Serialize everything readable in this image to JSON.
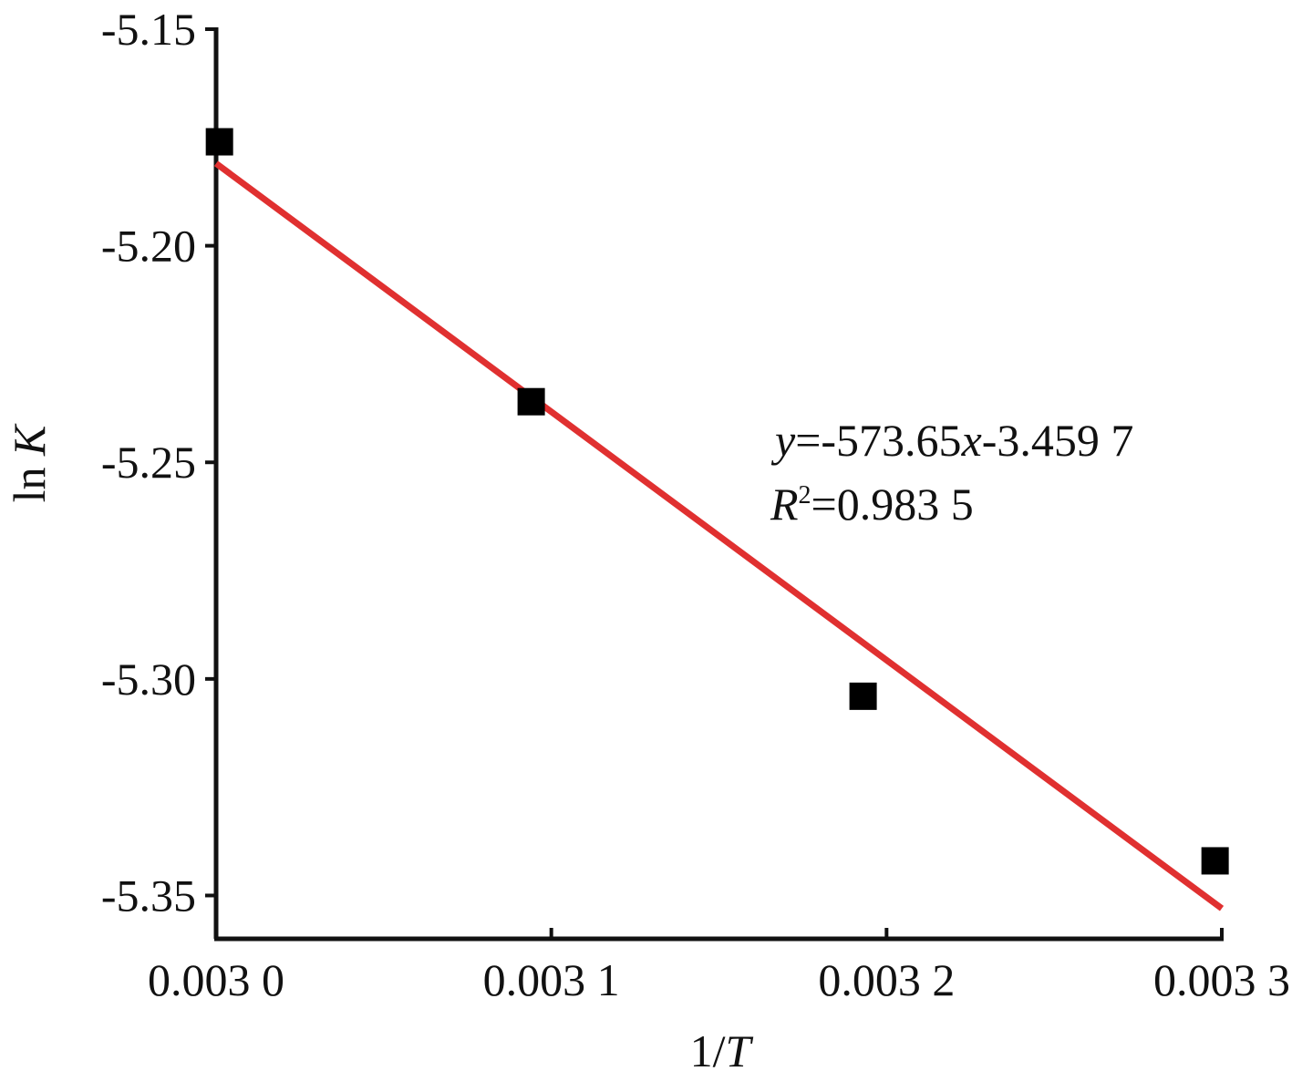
{
  "chart_data": {
    "type": "scatter",
    "x_label": [
      "1/",
      "T"
    ],
    "y_label": [
      "ln ",
      "K"
    ],
    "xlim": [
      0.003,
      0.0033
    ],
    "ylim": [
      -5.36,
      -5.15
    ],
    "xticks": [
      {
        "value": 0.003,
        "label": "0.003 0"
      },
      {
        "value": 0.0031,
        "label": "0.003 1"
      },
      {
        "value": 0.0032,
        "label": "0.003 2"
      },
      {
        "value": 0.0033,
        "label": "0.003 3"
      }
    ],
    "yticks": [
      -5.15,
      {
        "value": -5.2,
        "label": "-5.20"
      },
      -5.25,
      {
        "value": -5.3,
        "label": "-5.30"
      },
      -5.35
    ],
    "series": [
      {
        "type": "scatter",
        "color": "#000000",
        "x": [
          0.003001,
          0.003094,
          0.003193,
          0.003298
        ],
        "values": [
          -5.176,
          -5.236,
          -5.304,
          -5.342
        ]
      },
      {
        "type": "line",
        "color": "#e03030",
        "x": [
          0.003,
          0.0033
        ],
        "values": [
          -5.181,
          -5.353
        ]
      }
    ],
    "annotation": {
      "equation": [
        "y",
        "=-573.65",
        "x",
        "-3.459 7"
      ],
      "r2": [
        "R",
        "2",
        "=0.983 5"
      ]
    }
  }
}
